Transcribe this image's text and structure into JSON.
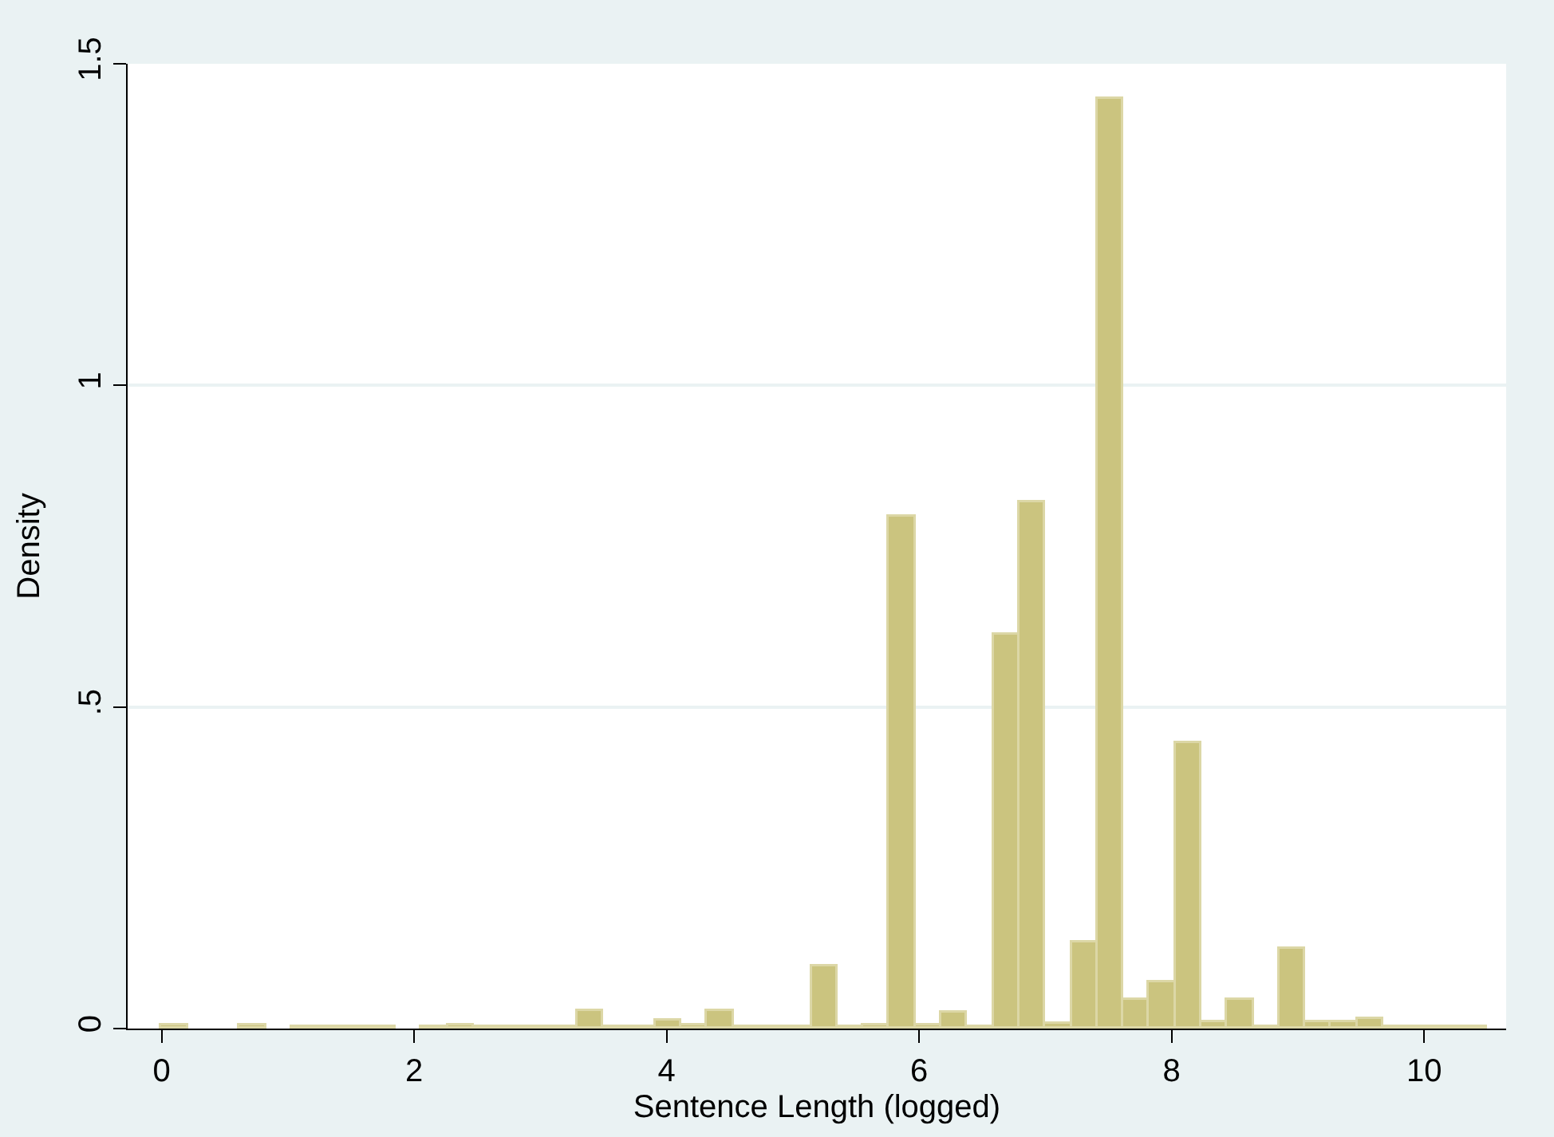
{
  "chart_data": {
    "type": "histogram",
    "xlabel": "Sentence Length (logged)",
    "ylabel": "Density",
    "bins": [
      0,
      0.206,
      0.412,
      0.618,
      0.824,
      1.029,
      1.235,
      1.441,
      1.647,
      1.853,
      2.059,
      2.265,
      2.471,
      2.676,
      2.882,
      3.088,
      3.294,
      3.5,
      3.706,
      3.912,
      4.118,
      4.324,
      4.529,
      4.735,
      4.941,
      5.147,
      5.353,
      5.559,
      5.765,
      5.971,
      6.176,
      6.382,
      6.588,
      6.794,
      7,
      7.206,
      7.412,
      7.618,
      7.824,
      8.029,
      8.235,
      8.441,
      8.647,
      8.853,
      9.059,
      9.265,
      9.471,
      9.676,
      9.882,
      10.088,
      10.294,
      10.5
    ],
    "values": [
      0.004,
      0,
      0,
      0.004,
      0,
      0.003,
      0.003,
      0.003,
      0.003,
      0,
      0.003,
      0.006,
      0.003,
      0.003,
      0.003,
      0.003,
      0.028,
      0.003,
      0.003,
      0.013,
      0.004,
      0.028,
      0.003,
      0.002,
      0.002,
      0.097,
      0.002,
      0.004,
      0.796,
      0.004,
      0.026,
      0.002,
      0.613,
      0.819,
      0.007,
      0.134,
      1.445,
      0.044,
      0.072,
      0.445,
      0.01,
      0.044,
      0.003,
      0.124,
      0.01,
      0.01,
      0.015,
      0.003,
      0.003,
      0.002,
      0.002
    ],
    "color": "#cbc47f",
    "xlim": [
      -0.27,
      10.65
    ],
    "xticks": [
      0,
      2,
      4,
      6,
      8,
      10
    ],
    "ylim": [
      0,
      1.5
    ],
    "yticks": [
      0,
      {
        "value": 0.5,
        "label": ".5"
      },
      1,
      1.5
    ],
    "grid": "y"
  }
}
